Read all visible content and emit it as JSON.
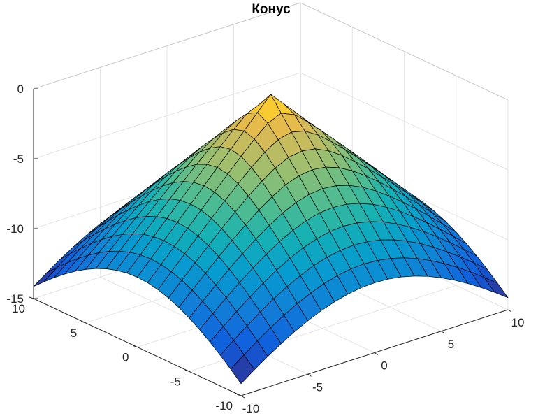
{
  "chart_data": {
    "type": "surface",
    "title": "Конус",
    "xlabel": "",
    "ylabel": "",
    "zlabel": "",
    "x_range": [
      -10,
      10
    ],
    "y_range": [
      -10,
      10
    ],
    "z_range": [
      -15,
      0
    ],
    "x_ticks": [
      "-10",
      "-5",
      "0",
      "5",
      "10"
    ],
    "y_ticks": [
      "-10",
      "-5",
      "0",
      "5",
      "10"
    ],
    "z_ticks": [
      "-15",
      "-10",
      "-5",
      "0"
    ],
    "grid": true,
    "colormap": "parula",
    "function": "z = -sqrt(x^2 + y^2)",
    "mesh_points_per_axis": 21,
    "z_peak": 0,
    "z_corner_min": -14.14,
    "edge_color": "#000000"
  }
}
